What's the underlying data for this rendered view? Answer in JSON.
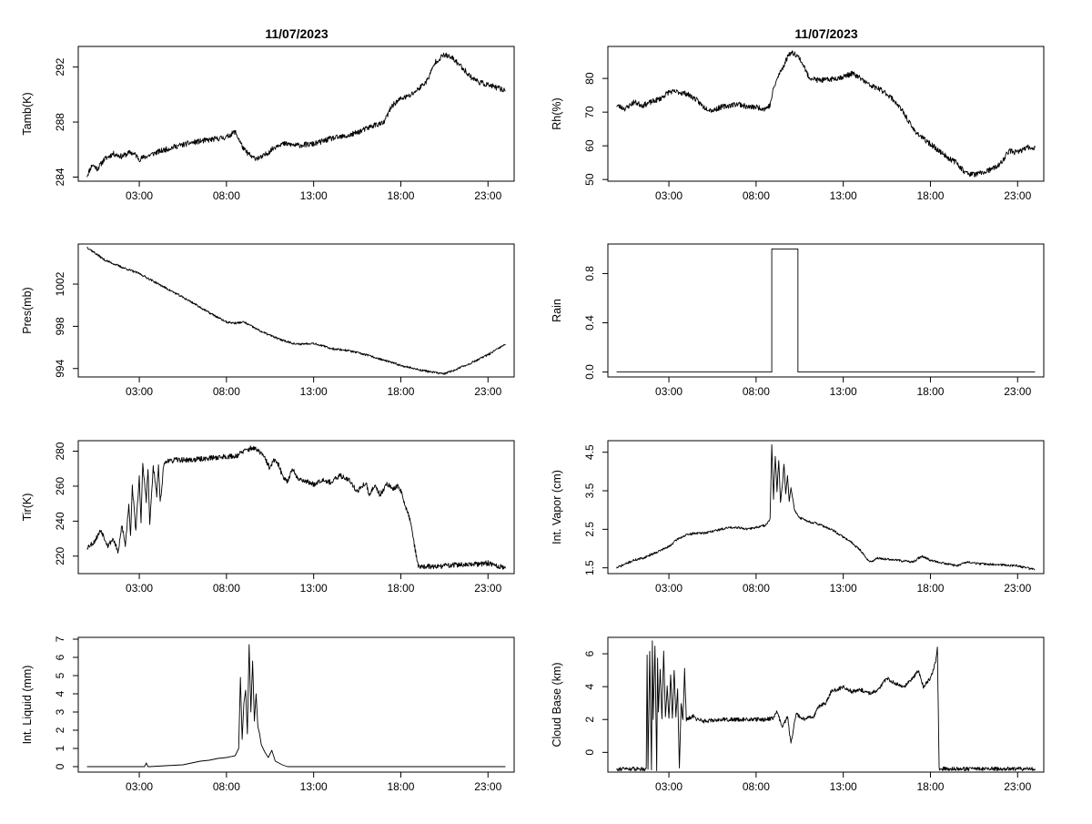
{
  "figure": {
    "column_titles": [
      "11/07/2023",
      "11/07/2023"
    ],
    "x_tick_labels": [
      "03:00",
      "08:00",
      "13:00",
      "18:00",
      "23:00"
    ]
  },
  "chart_data": [
    {
      "id": "tamb",
      "type": "line",
      "title": "11/07/2023",
      "ylabel": "Tamb(K)",
      "xlim": [
        -0.5,
        24.5
      ],
      "ylim": [
        283.7,
        293.5
      ],
      "yticks": [
        284,
        288,
        292
      ],
      "ytick_labels": [
        "284",
        "288",
        "292"
      ],
      "xticks": [
        3,
        8,
        13,
        18,
        23
      ],
      "xtick_labels": [
        "03:00",
        "08:00",
        "13:00",
        "18:00",
        "23:00"
      ],
      "series": [
        {
          "name": "Tamb",
          "noise": 0.2,
          "seed": 11,
          "x": [
            0.0,
            0.3,
            0.6,
            1.0,
            1.5,
            2.0,
            2.5,
            2.8,
            3.0,
            4.0,
            5.0,
            6.0,
            7.0,
            8.0,
            8.5,
            9.0,
            9.5,
            10.0,
            10.5,
            11.0,
            11.5,
            12.0,
            13.0,
            14.0,
            14.5,
            15.0,
            16.0,
            16.5,
            17.0,
            17.5,
            18.0,
            18.5,
            19.0,
            19.5,
            20.0,
            20.5,
            21.0,
            21.5,
            22.0,
            22.5,
            23.0,
            23.5,
            24.0
          ],
          "y": [
            284.1,
            284.9,
            284.6,
            285.3,
            285.7,
            285.5,
            285.8,
            285.6,
            285.3,
            285.8,
            286.2,
            286.5,
            286.7,
            286.9,
            287.3,
            286.0,
            285.4,
            285.4,
            285.9,
            286.4,
            286.4,
            286.3,
            286.4,
            286.8,
            286.9,
            287.0,
            287.5,
            287.8,
            287.9,
            289.2,
            289.7,
            289.9,
            290.4,
            291.0,
            292.4,
            292.9,
            292.6,
            292.0,
            291.3,
            290.9,
            290.7,
            290.5,
            290.3
          ]
        }
      ]
    },
    {
      "id": "rh",
      "type": "line",
      "title": "11/07/2023",
      "ylabel": "Rh(%)",
      "xlim": [
        -0.5,
        24.5
      ],
      "ylim": [
        49.5,
        89.5
      ],
      "yticks": [
        50,
        60,
        70,
        80
      ],
      "ytick_labels": [
        "50",
        "60",
        "70",
        "80"
      ],
      "xticks": [
        3,
        8,
        13,
        18,
        23
      ],
      "xtick_labels": [
        "03:00",
        "08:00",
        "13:00",
        "18:00",
        "23:00"
      ],
      "series": [
        {
          "name": "Rh",
          "noise": 0.8,
          "seed": 23,
          "x": [
            0.0,
            0.5,
            1.0,
            1.5,
            2.0,
            2.5,
            3.0,
            3.5,
            4.0,
            4.5,
            5.0,
            5.5,
            6.0,
            6.5,
            7.0,
            7.5,
            8.0,
            8.5,
            8.8,
            9.0,
            9.3,
            9.6,
            9.9,
            10.2,
            10.5,
            10.8,
            11.0,
            11.5,
            12.0,
            12.5,
            13.0,
            13.5,
            14.0,
            14.5,
            15.0,
            15.5,
            16.0,
            16.5,
            17.0,
            17.5,
            18.0,
            18.5,
            19.0,
            19.5,
            20.0,
            20.5,
            21.0,
            21.5,
            22.0,
            22.5,
            23.0,
            23.5,
            24.0
          ],
          "y": [
            72,
            71,
            73,
            72,
            73,
            74,
            76,
            76,
            75.5,
            74,
            71.5,
            70.5,
            71.5,
            72,
            72.5,
            71.5,
            71.5,
            71,
            72,
            77,
            81,
            84,
            87.5,
            87.5,
            86,
            83,
            80.5,
            79.5,
            79.5,
            80,
            80.5,
            81.5,
            80,
            78,
            77,
            75.5,
            73,
            69.5,
            65,
            62.5,
            60.5,
            58.5,
            56.5,
            55,
            52,
            51.5,
            52,
            53,
            54.5,
            58.5,
            58,
            59.5,
            59.5
          ]
        }
      ]
    },
    {
      "id": "pres",
      "type": "line",
      "title": "",
      "ylabel": "Pres(mb)",
      "xlim": [
        -0.5,
        24.5
      ],
      "ylim": [
        993.2,
        1005.8
      ],
      "yticks": [
        994,
        998,
        1002
      ],
      "ytick_labels": [
        "994",
        "998",
        "1002"
      ],
      "xticks": [
        3,
        8,
        13,
        18,
        23
      ],
      "xtick_labels": [
        "03:00",
        "08:00",
        "13:00",
        "18:00",
        "23:00"
      ],
      "series": [
        {
          "name": "Pres",
          "noise": 0.1,
          "seed": 37,
          "x": [
            0.0,
            0.5,
            1.0,
            2.0,
            3.0,
            4.0,
            5.0,
            6.0,
            7.0,
            8.0,
            8.5,
            9.0,
            10.0,
            11.0,
            12.0,
            13.0,
            14.0,
            15.0,
            16.0,
            17.0,
            18.0,
            19.0,
            20.0,
            20.5,
            21.0,
            22.0,
            23.0,
            24.0
          ],
          "y": [
            1005.5,
            1004.9,
            1004.3,
            1003.6,
            1003.0,
            1002.1,
            1001.2,
            1000.3,
            999.3,
            998.4,
            998.3,
            998.4,
            997.5,
            996.8,
            996.3,
            996.4,
            995.9,
            995.7,
            995.3,
            994.8,
            994.3,
            993.9,
            993.6,
            993.5,
            993.8,
            994.5,
            995.3,
            996.3
          ]
        }
      ]
    },
    {
      "id": "rain",
      "type": "line",
      "title": "",
      "ylabel": "Rain",
      "xlim": [
        -0.5,
        24.5
      ],
      "ylim": [
        -0.04,
        1.04
      ],
      "yticks": [
        0.0,
        0.4,
        0.8
      ],
      "ytick_labels": [
        "0.0",
        "0.4",
        "0.8"
      ],
      "xticks": [
        3,
        8,
        13,
        18,
        23
      ],
      "xtick_labels": [
        "03:00",
        "08:00",
        "13:00",
        "18:00",
        "23:00"
      ],
      "series": [
        {
          "name": "Rain",
          "noise": 0,
          "seed": 1,
          "x": [
            0.0,
            8.9,
            8.9,
            10.4,
            10.4,
            24.0
          ],
          "y": [
            0,
            0,
            1,
            1,
            0,
            0
          ]
        }
      ]
    },
    {
      "id": "tir",
      "type": "line",
      "title": "",
      "ylabel": "Tir(K)",
      "xlim": [
        -0.5,
        24.5
      ],
      "ylim": [
        210,
        286
      ],
      "yticks": [
        220,
        240,
        260,
        280
      ],
      "ytick_labels": [
        "220",
        "240",
        "260",
        "280"
      ],
      "xticks": [
        3,
        8,
        13,
        18,
        23
      ],
      "xtick_labels": [
        "03:00",
        "08:00",
        "13:00",
        "18:00",
        "23:00"
      ],
      "series": [
        {
          "name": "Tir",
          "noise": 1.5,
          "seed": 53,
          "x": [
            0.0,
            0.4,
            0.8,
            1.2,
            1.5,
            1.8,
            2.0,
            2.2,
            2.4,
            2.5,
            2.6,
            2.8,
            3.0,
            3.1,
            3.2,
            3.4,
            3.5,
            3.6,
            3.8,
            4.0,
            4.1,
            4.2,
            4.4,
            4.6,
            4.8,
            5.0,
            6.0,
            7.0,
            8.0,
            8.5,
            9.0,
            9.5,
            10.0,
            10.3,
            10.5,
            10.7,
            11.0,
            11.2,
            11.5,
            11.8,
            12.0,
            12.5,
            13.0,
            13.5,
            14.0,
            14.5,
            15.0,
            15.5,
            16.0,
            16.2,
            16.5,
            16.8,
            17.0,
            17.2,
            17.5,
            17.8,
            18.0,
            18.2,
            18.4,
            18.6,
            18.8,
            19.0,
            20.0,
            21.0,
            22.0,
            23.0,
            24.0
          ],
          "y": [
            225,
            228,
            235,
            226,
            230,
            222,
            238,
            226,
            250,
            232,
            260,
            235,
            265,
            240,
            272,
            252,
            270,
            238,
            271,
            255,
            272,
            250,
            272,
            275,
            274,
            275,
            275,
            276,
            277,
            277,
            280,
            282,
            279,
            274,
            270,
            275,
            272,
            266,
            263,
            270,
            265,
            263,
            261,
            264,
            262,
            266,
            264,
            257,
            262,
            254,
            261,
            255,
            258,
            262,
            258,
            260,
            258,
            250,
            245,
            238,
            225,
            214,
            214,
            215,
            215,
            216,
            213
          ]
        }
      ]
    },
    {
      "id": "vapor",
      "type": "line",
      "title": "",
      "ylabel": "Int. Vapor (cm)",
      "xlim": [
        -0.5,
        24.5
      ],
      "ylim": [
        1.35,
        4.8
      ],
      "yticks": [
        1.5,
        2.5,
        3.5,
        4.5
      ],
      "ytick_labels": [
        "1.5",
        "2.5",
        "3.5",
        "4.5"
      ],
      "xticks": [
        3,
        8,
        13,
        18,
        23
      ],
      "xtick_labels": [
        "03:00",
        "08:00",
        "13:00",
        "18:00",
        "23:00"
      ],
      "series": [
        {
          "name": "Int. Vapor",
          "noise": 0.03,
          "seed": 71,
          "x": [
            0.0,
            0.5,
            1.0,
            1.5,
            2.0,
            2.5,
            3.0,
            3.5,
            4.0,
            4.5,
            5.0,
            5.5,
            6.0,
            6.5,
            7.0,
            7.5,
            8.0,
            8.5,
            8.8,
            8.9,
            9.0,
            9.1,
            9.2,
            9.3,
            9.4,
            9.5,
            9.6,
            9.7,
            9.8,
            9.9,
            10.0,
            10.2,
            10.5,
            10.8,
            11.0,
            11.5,
            12.0,
            12.5,
            13.0,
            13.5,
            14.0,
            14.5,
            15.0,
            16.0,
            17.0,
            17.5,
            18.0,
            18.5,
            19.0,
            19.5,
            20.0,
            21.0,
            22.0,
            23.0,
            24.0
          ],
          "y": [
            1.5,
            1.6,
            1.7,
            1.75,
            1.85,
            1.95,
            2.05,
            2.25,
            2.35,
            2.4,
            2.4,
            2.45,
            2.5,
            2.55,
            2.55,
            2.5,
            2.55,
            2.6,
            2.75,
            4.7,
            3.3,
            4.4,
            3.5,
            4.3,
            3.2,
            3.6,
            4.2,
            3.4,
            3.9,
            3.2,
            3.6,
            3.0,
            2.8,
            2.75,
            2.7,
            2.65,
            2.55,
            2.45,
            2.3,
            2.15,
            1.95,
            1.65,
            1.75,
            1.7,
            1.65,
            1.8,
            1.7,
            1.65,
            1.6,
            1.55,
            1.65,
            1.6,
            1.58,
            1.55,
            1.45
          ]
        }
      ]
    },
    {
      "id": "liquid",
      "type": "line",
      "title": "",
      "ylabel": "Int. Liquid (mm)",
      "xlim": [
        -0.5,
        24.5
      ],
      "ylim": [
        -0.3,
        7.1
      ],
      "yticks": [
        0,
        1,
        2,
        3,
        4,
        5,
        6,
        7
      ],
      "ytick_labels": [
        "0",
        "1",
        "2",
        "3",
        "4",
        "5",
        "6",
        "7"
      ],
      "xticks": [
        3,
        8,
        13,
        18,
        23
      ],
      "xtick_labels": [
        "03:00",
        "08:00",
        "13:00",
        "18:00",
        "23:00"
      ],
      "series": [
        {
          "name": "Int. Liquid",
          "noise": 0,
          "seed": 1,
          "x": [
            0.0,
            3.3,
            3.4,
            3.5,
            3.6,
            4.5,
            5.5,
            6.0,
            6.5,
            7.0,
            7.5,
            8.0,
            8.5,
            8.7,
            8.8,
            8.9,
            9.0,
            9.1,
            9.2,
            9.3,
            9.4,
            9.5,
            9.6,
            9.7,
            9.8,
            9.9,
            10.0,
            10.2,
            10.4,
            10.6,
            10.8,
            11.0,
            11.2,
            11.5,
            12.0,
            24.0
          ],
          "y": [
            0,
            0,
            0.2,
            0,
            0,
            0.05,
            0.1,
            0.2,
            0.3,
            0.35,
            0.45,
            0.5,
            0.6,
            1.0,
            4.9,
            1.5,
            3.5,
            4.2,
            1.8,
            6.7,
            3.0,
            5.8,
            2.5,
            4.0,
            2.2,
            1.8,
            1.2,
            0.8,
            0.5,
            0.9,
            0.3,
            0.2,
            0.1,
            0.0,
            0,
            0
          ]
        }
      ]
    },
    {
      "id": "cloudbase",
      "type": "line",
      "title": "",
      "ylabel": "Cloud Base (km)",
      "xlim": [
        -0.5,
        24.5
      ],
      "ylim": [
        -1.2,
        7.0
      ],
      "yticks": [
        0,
        2,
        4,
        6
      ],
      "ytick_labels": [
        "0",
        "2",
        "4",
        "6"
      ],
      "xticks": [
        3,
        8,
        13,
        18,
        23
      ],
      "xtick_labels": [
        "03:00",
        "08:00",
        "13:00",
        "18:00",
        "23:00"
      ],
      "series": [
        {
          "name": "Cloud Base",
          "noise": 0.12,
          "seed": 91,
          "x": [
            0.0,
            1.7,
            1.75,
            1.8,
            1.9,
            2.0,
            2.05,
            2.1,
            2.2,
            2.3,
            2.35,
            2.4,
            2.5,
            2.6,
            2.7,
            2.8,
            2.9,
            3.0,
            3.1,
            3.2,
            3.3,
            3.4,
            3.5,
            3.6,
            3.7,
            3.8,
            3.9,
            4.0,
            4.2,
            4.4,
            4.6,
            4.8,
            5.0,
            6.0,
            7.0,
            8.0,
            8.5,
            9.0,
            9.2,
            9.5,
            9.8,
            10.0,
            10.3,
            10.6,
            11.0,
            11.3,
            11.6,
            12.0,
            12.3,
            12.6,
            13.0,
            13.5,
            14.0,
            14.5,
            15.0,
            15.5,
            16.0,
            16.5,
            17.0,
            17.3,
            17.6,
            18.0,
            18.3,
            18.4,
            18.5,
            18.6,
            24.0
          ],
          "y": [
            -1,
            -1,
            6.0,
            -1,
            6.2,
            -1,
            6.7,
            2.0,
            6.5,
            -1,
            5.8,
            2.5,
            5.0,
            2.0,
            6.2,
            2.2,
            4.0,
            2.0,
            4.8,
            2.0,
            5.0,
            2.2,
            3.8,
            -1,
            3.0,
            2.0,
            5.0,
            2.0,
            2.1,
            2.2,
            2.0,
            2.0,
            1.9,
            2.0,
            2.0,
            2.0,
            2.0,
            2.1,
            2.5,
            1.5,
            2.2,
            0.5,
            2.4,
            2.0,
            2.1,
            2.2,
            2.8,
            3.0,
            3.7,
            3.8,
            4.0,
            3.7,
            3.8,
            3.6,
            3.8,
            4.5,
            4.2,
            4.0,
            4.5,
            5.0,
            4.0,
            4.5,
            5.5,
            6.3,
            -1,
            -1,
            -1
          ]
        }
      ]
    }
  ]
}
